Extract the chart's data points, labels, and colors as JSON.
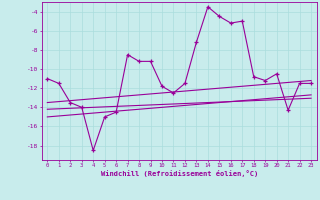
{
  "xlabel": "Windchill (Refroidissement éolien,°C)",
  "bg_color": "#c8ecec",
  "line_color": "#990099",
  "grid_color": "#aadddd",
  "x_data": [
    0,
    1,
    2,
    3,
    4,
    5,
    6,
    7,
    8,
    9,
    10,
    11,
    12,
    13,
    14,
    15,
    16,
    17,
    18,
    19,
    20,
    21,
    22,
    23
  ],
  "y_main": [
    -11.0,
    -11.5,
    -13.5,
    -14.0,
    -18.5,
    -15.0,
    -14.5,
    -8.5,
    -9.2,
    -9.2,
    -11.8,
    -12.5,
    -11.5,
    -7.2,
    -3.5,
    -4.5,
    -5.2,
    -5.0,
    -10.8,
    -11.2,
    -10.5,
    -14.3,
    -11.5,
    -11.5
  ],
  "y_reg1": [
    -13.5,
    -13.4,
    -13.3,
    -13.2,
    -13.1,
    -13.0,
    -12.9,
    -12.8,
    -12.7,
    -12.6,
    -12.5,
    -12.4,
    -12.3,
    -12.2,
    -12.1,
    -12.0,
    -11.9,
    -11.8,
    -11.7,
    -11.6,
    -11.5,
    -11.4,
    -11.3,
    -11.2
  ],
  "y_reg2": [
    -15.0,
    -14.9,
    -14.8,
    -14.7,
    -14.6,
    -14.5,
    -14.4,
    -14.3,
    -14.2,
    -14.1,
    -14.0,
    -13.9,
    -13.8,
    -13.7,
    -13.6,
    -13.5,
    -13.4,
    -13.3,
    -13.2,
    -13.1,
    -13.0,
    -12.9,
    -12.8,
    -12.7
  ],
  "y_reg3": [
    -14.2,
    -14.15,
    -14.1,
    -14.05,
    -14.0,
    -13.95,
    -13.9,
    -13.85,
    -13.8,
    -13.75,
    -13.7,
    -13.65,
    -13.6,
    -13.55,
    -13.5,
    -13.45,
    -13.4,
    -13.35,
    -13.3,
    -13.25,
    -13.2,
    -13.15,
    -13.1,
    -13.05
  ],
  "xlim": [
    -0.5,
    23.5
  ],
  "ylim": [
    -19.5,
    -3.0
  ],
  "yticks": [
    -18,
    -16,
    -14,
    -12,
    -10,
    -8,
    -6,
    -4
  ],
  "xticks": [
    0,
    1,
    2,
    3,
    4,
    5,
    6,
    7,
    8,
    9,
    10,
    11,
    12,
    13,
    14,
    15,
    16,
    17,
    18,
    19,
    20,
    21,
    22,
    23
  ]
}
